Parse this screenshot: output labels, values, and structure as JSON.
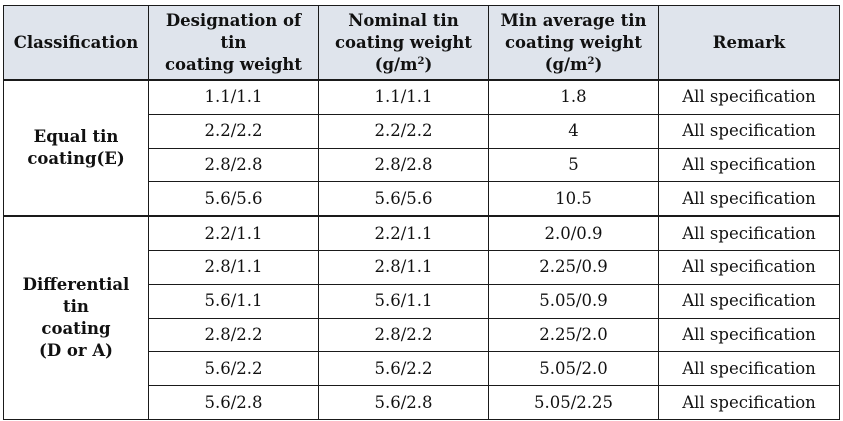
{
  "headers": {
    "classification": "Classification",
    "designation": [
      "Designation of tin",
      "coating weight"
    ],
    "nominal": [
      "Nominal tin",
      "coating weight"
    ],
    "nominal_unit": "(g/m",
    "nominal_unit_sup": "2",
    "nominal_unit_close": ")",
    "min_average": [
      "Min average tin",
      "coating weight"
    ],
    "min_unit": "(g/m",
    "min_unit_sup": "2",
    "min_unit_close": ")",
    "remark": "Remark"
  },
  "groups": [
    {
      "classification": [
        "Equal tin",
        "coating(E)"
      ],
      "rows": [
        {
          "designation": "1.1/1.1",
          "nominal": "1.1/1.1",
          "min_average": "1.8",
          "remark": "All specification"
        },
        {
          "designation": "2.2/2.2",
          "nominal": "2.2/2.2",
          "min_average": "4",
          "remark": "All specification"
        },
        {
          "designation": "2.8/2.8",
          "nominal": "2.8/2.8",
          "min_average": "5",
          "remark": "All specification"
        },
        {
          "designation": "5.6/5.6",
          "nominal": "5.6/5.6",
          "min_average": "10.5",
          "remark": "All specification"
        }
      ]
    },
    {
      "classification": [
        "Differential tin",
        "coating",
        "(D or A)"
      ],
      "rows": [
        {
          "designation": "2.2/1.1",
          "nominal": "2.2/1.1",
          "min_average": "2.0/0.9",
          "remark": "All specification"
        },
        {
          "designation": "2.8/1.1",
          "nominal": "2.8/1.1",
          "min_average": "2.25/0.9",
          "remark": "All specification"
        },
        {
          "designation": "5.6/1.1",
          "nominal": "5.6/1.1",
          "min_average": "5.05/0.9",
          "remark": "All specification"
        },
        {
          "designation": "2.8/2.2",
          "nominal": "2.8/2.2",
          "min_average": "2.25/2.0",
          "remark": "All specification"
        },
        {
          "designation": "5.6/2.2",
          "nominal": "5.6/2.2",
          "min_average": "5.05/2.0",
          "remark": "All specification"
        },
        {
          "designation": "5.6/2.8",
          "nominal": "5.6/2.8",
          "min_average": "5.05/2.25",
          "remark": "All specification"
        }
      ]
    }
  ],
  "colors": {
    "header_bg": "#dfe4ec",
    "border": "#1a1a1a",
    "text": "#111111"
  }
}
